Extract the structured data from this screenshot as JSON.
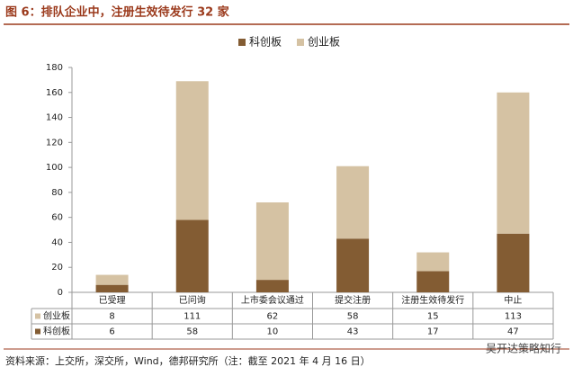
{
  "chart_data": {
    "type": "stacked_bar",
    "title": "图 6：排队企业中，注册生效待发行 32 家",
    "categories": [
      "已受理",
      "已问询",
      "上市委会议通过",
      "提交注册",
      "注册生效待发行",
      "中止"
    ],
    "series": [
      {
        "name": "科创板",
        "color": "#835c33",
        "values": [
          6,
          58,
          10,
          43,
          17,
          47
        ]
      },
      {
        "name": "创业板",
        "color": "#d5c2a3",
        "values": [
          8,
          111,
          62,
          58,
          15,
          113
        ]
      }
    ],
    "ylim": [
      0,
      180
    ],
    "yticks": [
      0,
      20,
      40,
      60,
      80,
      100,
      120,
      140,
      160,
      180
    ],
    "legend": "top",
    "source": "资料来源：上交所，深交所，Wind，德邦研究所（注：截至 2021 年 4 月 16 日）",
    "watermark": "吴开达策略知行"
  }
}
